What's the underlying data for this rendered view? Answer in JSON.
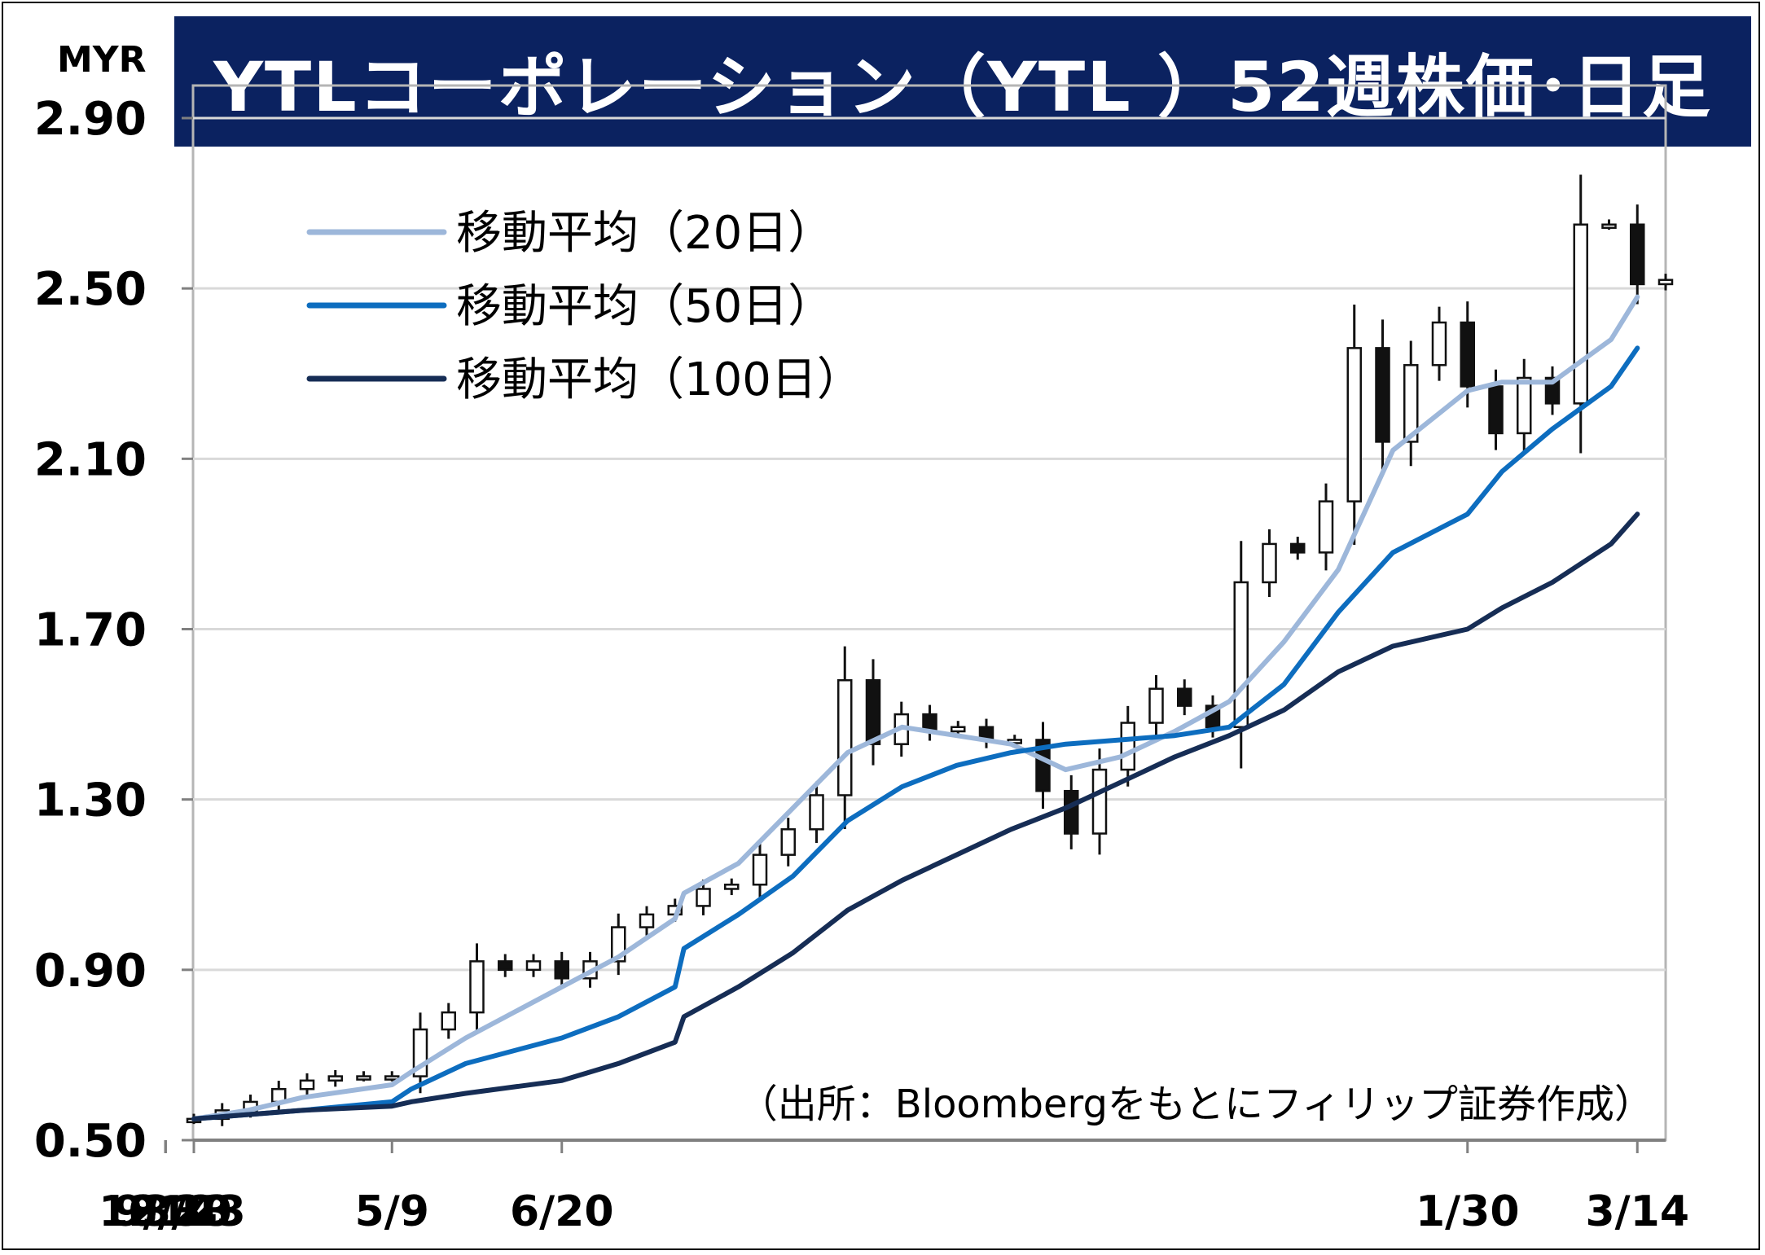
{
  "chart_data": {
    "type": "candlestick",
    "title": "YTLコーポレーション（YTL ）52週株価･日足",
    "unit": "MYR",
    "source": "（出所：Bloombergをもとにフィリップ証券作成）",
    "ylim": [
      0.5,
      2.9
    ],
    "yticks": [
      0.5,
      0.9,
      1.3,
      1.7,
      2.1,
      2.5,
      2.9
    ],
    "ytick_labels": [
      "0.50",
      "0.90",
      "1.30",
      "1.70",
      "2.10",
      "2.50",
      "2.90"
    ],
    "x_range": [
      "3/23",
      "3/17"
    ],
    "xticks": [
      "3/23",
      "5/9",
      "6/20",
      "8/2",
      "9/14",
      "10/30",
      "12/13",
      "1/30",
      "3/14"
    ],
    "grid": true,
    "legend": "top-left",
    "series": [
      {
        "name": "移動平均（20日）",
        "color": "#9db7da",
        "x": [
          "3/23",
          "4/8",
          "4/24",
          "5/9",
          "5/24",
          "6/8",
          "6/20",
          "7/4",
          "7/18",
          "8/2",
          "8/16",
          "8/30",
          "9/14",
          "9/24",
          "10/8",
          "10/20",
          "10/30",
          "11/12",
          "11/26",
          "12/13",
          "12/27",
          "1/10",
          "1/22",
          "1/30",
          "2/8",
          "2/20",
          "3/3",
          "3/14"
        ],
        "values": [
          0.55,
          0.57,
          0.6,
          0.63,
          0.66,
          0.74,
          0.86,
          0.93,
          1.02,
          1.08,
          1.15,
          1.28,
          1.41,
          1.47,
          1.45,
          1.43,
          1.37,
          1.4,
          1.46,
          1.53,
          1.67,
          1.84,
          2.12,
          2.26,
          2.28,
          2.28,
          2.38,
          2.48
        ]
      },
      {
        "name": "移動平均（50日）",
        "color": "#0d6dbf",
        "x": [
          "3/23",
          "4/8",
          "4/24",
          "5/9",
          "5/24",
          "6/8",
          "6/20",
          "7/4",
          "7/18",
          "8/2",
          "8/16",
          "8/30",
          "9/14",
          "9/24",
          "10/8",
          "10/20",
          "10/30",
          "11/12",
          "11/26",
          "12/13",
          "12/27",
          "1/10",
          "1/22",
          "1/30",
          "2/8",
          "2/20",
          "3/3",
          "3/14"
        ],
        "values": [
          0.55,
          0.56,
          0.57,
          0.59,
          0.62,
          0.68,
          0.74,
          0.79,
          0.86,
          0.95,
          1.03,
          1.12,
          1.25,
          1.33,
          1.38,
          1.41,
          1.43,
          1.44,
          1.45,
          1.47,
          1.57,
          1.74,
          1.88,
          1.97,
          2.07,
          2.17,
          2.27,
          2.36
        ]
      },
      {
        "name": "移動平均（100日）",
        "color": "#162d55",
        "x": [
          "3/23",
          "4/8",
          "4/24",
          "5/9",
          "5/24",
          "6/8",
          "6/20",
          "7/4",
          "7/18",
          "8/2",
          "8/16",
          "8/30",
          "9/14",
          "9/24",
          "10/8",
          "10/20",
          "10/30",
          "11/12",
          "11/26",
          "12/13",
          "12/27",
          "1/10",
          "1/22",
          "1/30",
          "2/8",
          "2/20",
          "3/3",
          "3/14"
        ],
        "values": [
          0.55,
          0.56,
          0.57,
          0.58,
          0.59,
          0.61,
          0.64,
          0.68,
          0.73,
          0.79,
          0.86,
          0.94,
          1.04,
          1.11,
          1.17,
          1.23,
          1.28,
          1.34,
          1.4,
          1.45,
          1.51,
          1.6,
          1.66,
          1.7,
          1.75,
          1.81,
          1.9,
          1.97
        ]
      }
    ],
    "price": {
      "x": [
        "3/23",
        "3/28",
        "4/4",
        "4/11",
        "4/18",
        "4/25",
        "5/2",
        "5/9",
        "5/16",
        "5/23",
        "5/30",
        "6/6",
        "6/13",
        "6/20",
        "6/27",
        "7/4",
        "7/11",
        "7/18",
        "7/25",
        "8/1",
        "8/8",
        "8/15",
        "8/22",
        "8/29",
        "9/5",
        "9/12",
        "9/19",
        "9/26",
        "10/3",
        "10/10",
        "10/17",
        "10/24",
        "10/31",
        "11/7",
        "11/14",
        "11/21",
        "11/28",
        "12/5",
        "12/12",
        "12/19",
        "12/26",
        "1/2",
        "1/9",
        "1/16",
        "1/23",
        "1/30",
        "2/6",
        "2/13",
        "2/20",
        "2/27",
        "3/6",
        "3/14",
        "3/17"
      ],
      "values": [
        0.55,
        0.57,
        0.59,
        0.62,
        0.64,
        0.65,
        0.65,
        0.65,
        0.76,
        0.8,
        0.92,
        0.9,
        0.92,
        0.88,
        0.92,
        1.0,
        1.03,
        1.05,
        1.09,
        1.1,
        1.17,
        1.23,
        1.31,
        1.58,
        1.43,
        1.5,
        1.46,
        1.47,
        1.44,
        1.44,
        1.32,
        1.22,
        1.37,
        1.48,
        1.56,
        1.52,
        1.47,
        1.81,
        1.9,
        1.88,
        2.0,
        2.36,
        2.14,
        2.32,
        2.42,
        2.27,
        2.16,
        2.29,
        2.23,
        2.65,
        2.65,
        2.51,
        2.52
      ]
    }
  }
}
